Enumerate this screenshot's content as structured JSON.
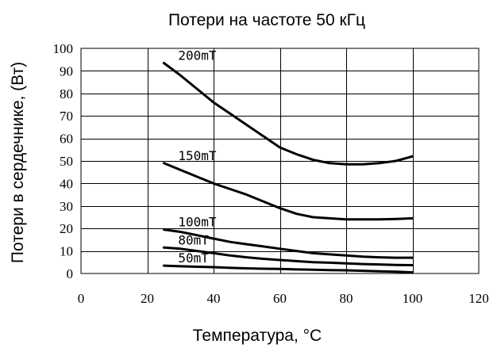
{
  "chart_data": {
    "type": "line",
    "title": "Потери на частоте 50 кГц",
    "xlabel": "Температура, °С",
    "ylabel": "Потери в сердечнике, (Вт)",
    "xlim": [
      0,
      120
    ],
    "ylim": [
      0,
      100
    ],
    "x_ticks": [
      0,
      20,
      40,
      60,
      80,
      100,
      120
    ],
    "y_ticks": [
      0,
      10,
      20,
      30,
      40,
      50,
      60,
      70,
      80,
      90,
      100
    ],
    "grid": true,
    "series": [
      {
        "name": "200mT",
        "x": [
          25,
          30,
          35,
          40,
          45,
          50,
          55,
          60,
          65,
          70,
          75,
          80,
          85,
          90,
          95,
          100
        ],
        "values": [
          93.5,
          88,
          82,
          76,
          71,
          66,
          61,
          56,
          53,
          50.5,
          49,
          48.5,
          48.5,
          49,
          50,
          52
        ]
      },
      {
        "name": "150mT",
        "x": [
          25,
          30,
          35,
          40,
          45,
          50,
          55,
          60,
          65,
          70,
          75,
          80,
          85,
          90,
          95,
          100
        ],
        "values": [
          49,
          46,
          43,
          40,
          37.5,
          35,
          32,
          29,
          26.5,
          25,
          24.5,
          24,
          24,
          24,
          24.2,
          24.5
        ]
      },
      {
        "name": "100mT",
        "x": [
          25,
          30,
          35,
          40,
          45,
          50,
          55,
          60,
          65,
          70,
          75,
          80,
          85,
          90,
          95,
          100
        ],
        "values": [
          19.5,
          18.5,
          17,
          15.5,
          14,
          13,
          12,
          11,
          10,
          9,
          8.5,
          8,
          7.5,
          7.2,
          7,
          7
        ]
      },
      {
        "name": "80mT",
        "x": [
          25,
          30,
          35,
          40,
          45,
          50,
          55,
          60,
          65,
          70,
          75,
          80,
          85,
          90,
          95,
          100
        ],
        "values": [
          11.5,
          11,
          10,
          9,
          8,
          7.2,
          6.5,
          6,
          5.5,
          5,
          4.8,
          4.5,
          4.2,
          4,
          3.8,
          3.7
        ]
      },
      {
        "name": "50mT",
        "x": [
          25,
          30,
          35,
          40,
          45,
          50,
          55,
          60,
          65,
          70,
          75,
          80,
          85,
          90,
          95,
          100
        ],
        "values": [
          3.5,
          3.2,
          3,
          2.8,
          2.5,
          2.3,
          2.1,
          2,
          1.8,
          1.7,
          1.5,
          1.4,
          1.2,
          1,
          0.8,
          0.5
        ]
      }
    ]
  }
}
